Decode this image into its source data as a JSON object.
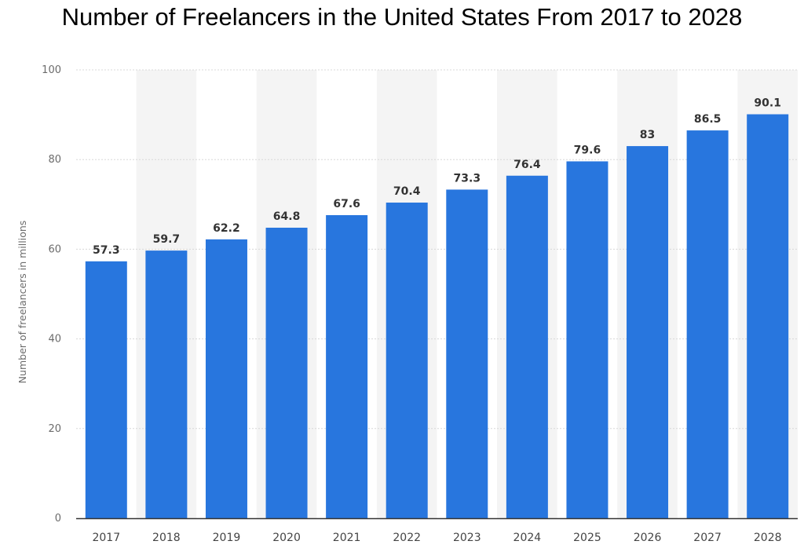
{
  "chart_data": {
    "type": "bar",
    "title": "Number of Freelancers in the United States From 2017 to 2028",
    "xlabel": "",
    "ylabel": "Number of freelancers in millions",
    "categories": [
      "2017",
      "2018",
      "2019",
      "2020",
      "2021",
      "2022",
      "2023",
      "2024",
      "2025",
      "2026",
      "2027",
      "2028"
    ],
    "values": [
      57.3,
      59.7,
      62.2,
      64.8,
      67.6,
      70.4,
      73.3,
      76.4,
      79.6,
      83,
      86.5,
      90.1
    ],
    "ylim": [
      0,
      100
    ],
    "yticks": [
      0,
      20,
      40,
      60,
      80,
      100
    ],
    "grid": true,
    "bar_color": "#2876de",
    "band_color": "#f4f4f4",
    "grid_color": "#d8d8d8",
    "axis_color": "#333333"
  }
}
